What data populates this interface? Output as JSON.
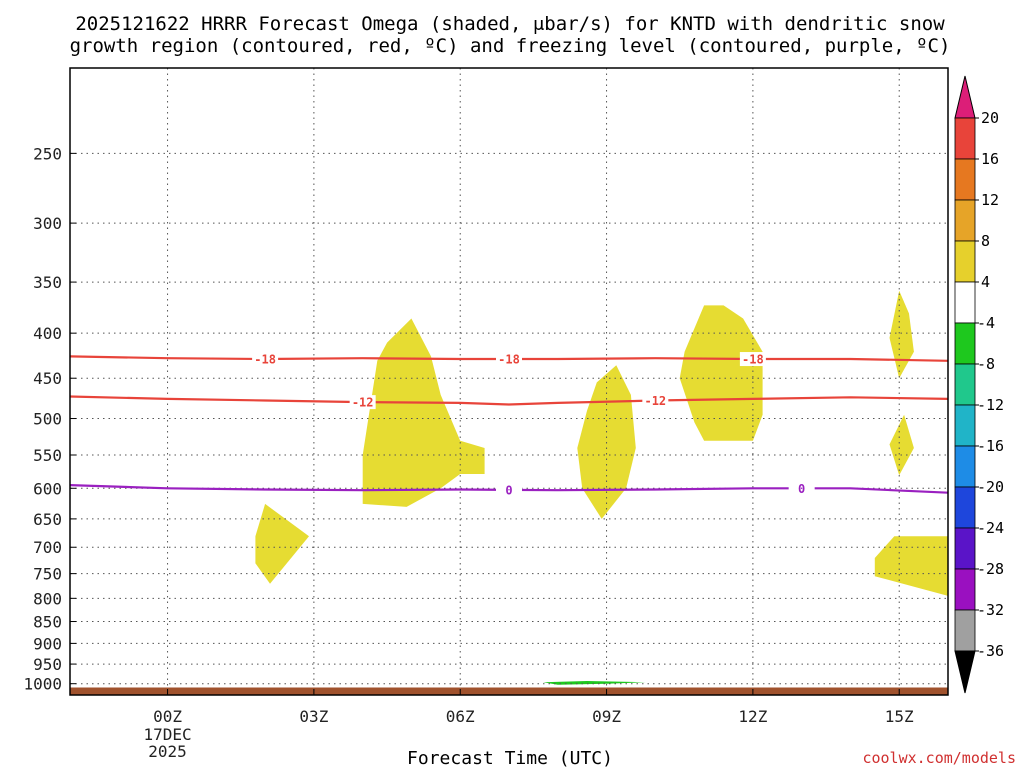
{
  "title": {
    "line1": "2025121622 HRRR Forecast Omega (shaded, μbar/s) for KNTD with dendritic snow",
    "line2": "growth region (contoured, red, ºC) and freezing level (contoured, purple, ºC)"
  },
  "credit": "coolwx.com/models",
  "chart_data": {
    "type": "heatmap",
    "title": "2025121622 HRRR Forecast Omega (shaded, μbar/s) for KNTD with dendritic snow growth region (contoured, red, ºC) and freezing level (contoured, purple, ºC)",
    "xlabel": "Forecast Time (UTC)",
    "ylabel": "",
    "x_unit": "hours from 2025-12-17 00Z",
    "xlim": [
      -2,
      16
    ],
    "y_scale": "log (pressure, hPa, inverted)",
    "ylim": [
      1030,
      200
    ],
    "grid": true,
    "x_ticks": [
      {
        "x": 0,
        "label": "00Z",
        "sub1": "17DEC",
        "sub2": "2025"
      },
      {
        "x": 3,
        "label": "03Z"
      },
      {
        "x": 6,
        "label": "06Z"
      },
      {
        "x": 9,
        "label": "09Z"
      },
      {
        "x": 12,
        "label": "12Z"
      },
      {
        "x": 15,
        "label": "15Z"
      }
    ],
    "y_ticks": [
      250,
      300,
      350,
      400,
      450,
      500,
      550,
      600,
      650,
      700,
      750,
      800,
      850,
      900,
      950,
      1000
    ],
    "contours": [
      {
        "value": "-18",
        "color": "#e8443a",
        "points": [
          [
            -2,
            425
          ],
          [
            0,
            427
          ],
          [
            2,
            428
          ],
          [
            4,
            427
          ],
          [
            6,
            428
          ],
          [
            8,
            428
          ],
          [
            10,
            427
          ],
          [
            12,
            428
          ],
          [
            14,
            428
          ],
          [
            16,
            430
          ]
        ],
        "label_x": [
          2,
          7,
          12
        ]
      },
      {
        "value": "-12",
        "color": "#e8443a",
        "points": [
          [
            -2,
            472
          ],
          [
            0,
            475
          ],
          [
            2,
            477
          ],
          [
            4,
            479
          ],
          [
            6,
            480
          ],
          [
            7,
            482
          ],
          [
            8,
            480
          ],
          [
            10,
            477
          ],
          [
            12,
            475
          ],
          [
            14,
            473
          ],
          [
            16,
            475
          ]
        ],
        "label_x": [
          4,
          10
        ]
      },
      {
        "value": "0",
        "color": "#9a20c0",
        "points": [
          [
            -2,
            595
          ],
          [
            0,
            600
          ],
          [
            2,
            602
          ],
          [
            4,
            603
          ],
          [
            6,
            602
          ],
          [
            8,
            603
          ],
          [
            10,
            602
          ],
          [
            12,
            600
          ],
          [
            14,
            600
          ],
          [
            16,
            607
          ]
        ],
        "label_x": [
          7,
          13
        ]
      }
    ],
    "shaded_regions": [
      {
        "category": "4 to 8",
        "color": "#e6dc32",
        "points": [
          [
            1.8,
            730
          ],
          [
            2.1,
            770
          ],
          [
            2.9,
            680
          ],
          [
            2.0,
            625
          ],
          [
            1.8,
            680
          ]
        ]
      },
      {
        "category": "4 to 8",
        "color": "#e6dc32",
        "points": [
          [
            4.0,
            625
          ],
          [
            4.9,
            630
          ],
          [
            5.6,
            600
          ],
          [
            6.0,
            578
          ],
          [
            6.5,
            578
          ],
          [
            6.5,
            540
          ],
          [
            6.0,
            530
          ],
          [
            5.6,
            470
          ],
          [
            5.4,
            425
          ],
          [
            5.0,
            385
          ],
          [
            4.5,
            410
          ],
          [
            4.3,
            430
          ],
          [
            4.0,
            550
          ]
        ]
      },
      {
        "category": "4 to 8",
        "color": "#e6dc32",
        "points": [
          [
            8.4,
            540
          ],
          [
            8.5,
            600
          ],
          [
            8.9,
            650
          ],
          [
            9.4,
            600
          ],
          [
            9.6,
            540
          ],
          [
            9.5,
            470
          ],
          [
            9.2,
            435
          ],
          [
            8.8,
            455
          ],
          [
            8.6,
            490
          ]
        ]
      },
      {
        "category": "4 to 8",
        "color": "#e6dc32",
        "points": [
          [
            10.5,
            450
          ],
          [
            10.8,
            505
          ],
          [
            11.0,
            530
          ],
          [
            12.0,
            530
          ],
          [
            12.2,
            495
          ],
          [
            12.2,
            420
          ],
          [
            11.8,
            385
          ],
          [
            11.4,
            372
          ],
          [
            11.0,
            372
          ],
          [
            10.6,
            420
          ]
        ]
      },
      {
        "category": "4 to 8",
        "color": "#e6dc32",
        "points": [
          [
            14.8,
            405
          ],
          [
            15.0,
            450
          ],
          [
            15.3,
            420
          ],
          [
            15.2,
            380
          ],
          [
            15.0,
            358
          ]
        ]
      },
      {
        "category": "4 to 8",
        "color": "#e6dc32",
        "points": [
          [
            14.8,
            535
          ],
          [
            15.0,
            580
          ],
          [
            15.3,
            540
          ],
          [
            15.1,
            495
          ]
        ]
      },
      {
        "category": "4 to 8",
        "color": "#e6dc32",
        "points": [
          [
            14.5,
            755
          ],
          [
            16.0,
            795
          ],
          [
            16.0,
            680
          ],
          [
            14.9,
            680
          ],
          [
            14.5,
            720
          ]
        ]
      },
      {
        "category": "-8 to -4",
        "color": "#1ec81e",
        "points": [
          [
            7.7,
            996
          ],
          [
            8.0,
            1003
          ],
          [
            9.0,
            1000
          ],
          [
            9.8,
            996
          ],
          [
            8.6,
            993
          ]
        ]
      }
    ],
    "terrain": {
      "color": "#a0522d",
      "top_hPa": 1010
    },
    "colorbar": {
      "labels": [
        "20",
        "16",
        "12",
        "8",
        "4",
        "-4",
        "-8",
        "-12",
        "-16",
        "-20",
        "-24",
        "-28",
        "-32",
        "-36"
      ],
      "colors": [
        "#dc1e78",
        "#e8443a",
        "#e67820",
        "#e6a428",
        "#e6d02c",
        "#e6dc32",
        "#ffffff",
        "#1ec81e",
        "#20c88c",
        "#20b4c8",
        "#1e8ce6",
        "#1e46dc",
        "#5a14c8",
        "#9a10c0",
        "#a0a0a0",
        "#000000"
      ]
    }
  }
}
